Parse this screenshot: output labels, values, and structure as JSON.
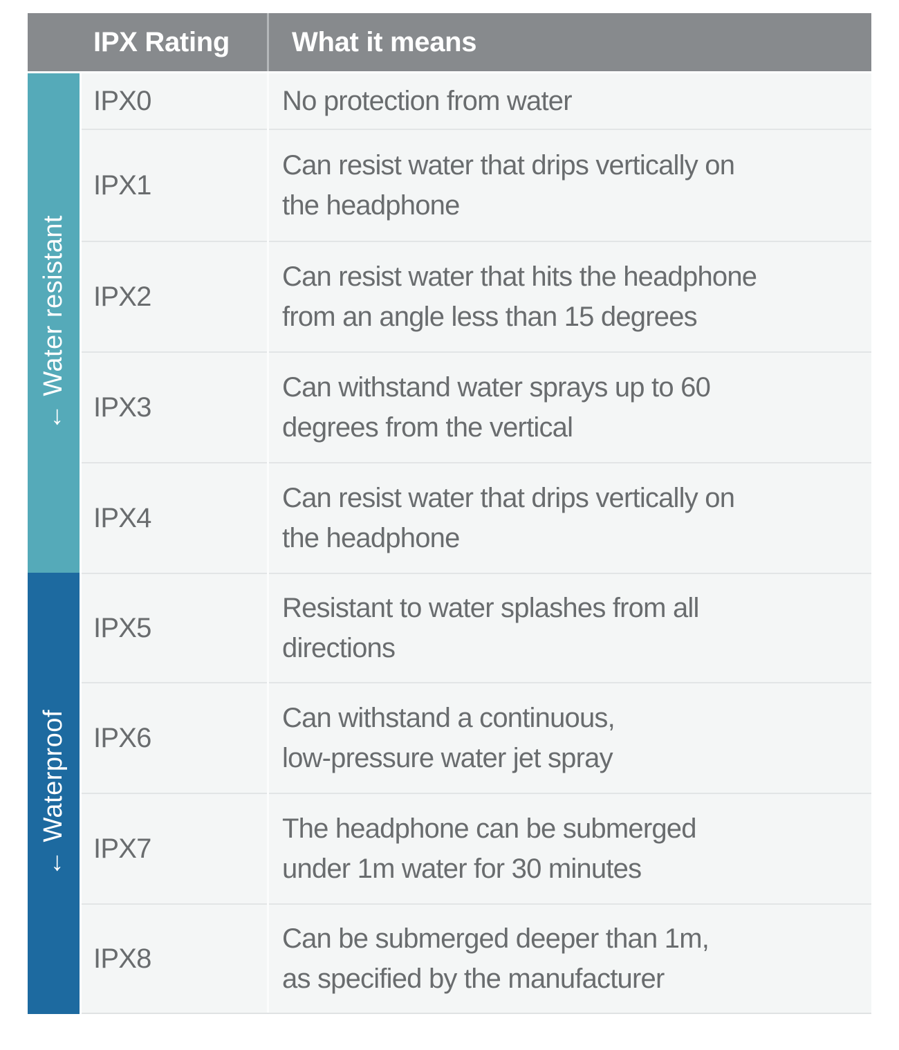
{
  "table": {
    "header": {
      "rating_col": "IPX Rating",
      "meaning_col": "What it means"
    },
    "groups": [
      {
        "label": "← Water resistant",
        "color": "#55aab9",
        "covers": [
          "IPX0",
          "IPX1",
          "IPX2",
          "IPX3",
          "IPX4"
        ]
      },
      {
        "label": "← Waterproof",
        "color": "#1d6aa0",
        "covers": [
          "IPX5",
          "IPX6",
          "IPX7",
          "IPX8"
        ]
      }
    ],
    "rows": [
      {
        "rating": "IPX0",
        "meaning": "No protection from water"
      },
      {
        "rating": "IPX1",
        "meaning": "Can resist water that drips vertically on\nthe headphone"
      },
      {
        "rating": "IPX2",
        "meaning": "Can resist water that hits the headphone\nfrom an angle less than 15 degrees"
      },
      {
        "rating": "IPX3",
        "meaning": "Can withstand water sprays up to 60\ndegrees from the vertical"
      },
      {
        "rating": "IPX4",
        "meaning": "Can resist water that drips vertically on\nthe headphone"
      },
      {
        "rating": "IPX5",
        "meaning": "Resistant to water splashes from all\ndirections"
      },
      {
        "rating": "IPX6",
        "meaning": "Can withstand a continuous,\nlow-pressure water jet spray"
      },
      {
        "rating": "IPX7",
        "meaning": "The headphone can be submerged\nunder 1m water for 30 minutes"
      },
      {
        "rating": "IPX8",
        "meaning": "Can be submerged deeper than 1m,\nas specified by the manufacturer"
      }
    ],
    "colors": {
      "header_bg": "#878a8d",
      "header_text": "#ffffff",
      "row_bg": "#f4f6f6",
      "row_divider": "#e2e5e6",
      "body_text": "#696c6e",
      "water_resistant_strip": "#55aab9",
      "waterproof_strip": "#1d6aa0"
    }
  }
}
